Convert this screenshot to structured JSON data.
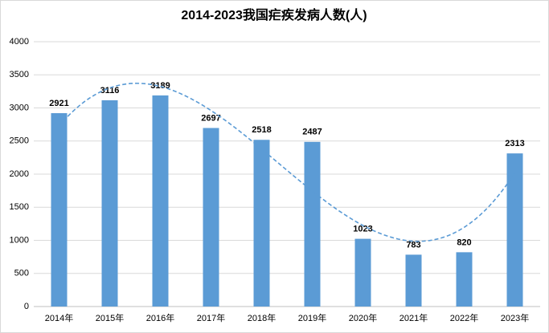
{
  "chart_data": {
    "type": "bar",
    "title": "2014-2023我国疟疾发病人数(人)",
    "categories": [
      "2014年",
      "2015年",
      "2016年",
      "2017年",
      "2018年",
      "2019年",
      "2020年",
      "2021年",
      "2022年",
      "2023年"
    ],
    "values": [
      2921,
      3116,
      3189,
      2697,
      2518,
      2487,
      1023,
      783,
      820,
      2313
    ],
    "color": "#5b9bd5",
    "trendline": "polynomial",
    "trendline_color": "#5b9bd5",
    "ylim": [
      0,
      4000
    ],
    "yticks": [
      0,
      500,
      1000,
      1500,
      2000,
      2500,
      3000,
      3500,
      4000
    ],
    "grid": true
  }
}
